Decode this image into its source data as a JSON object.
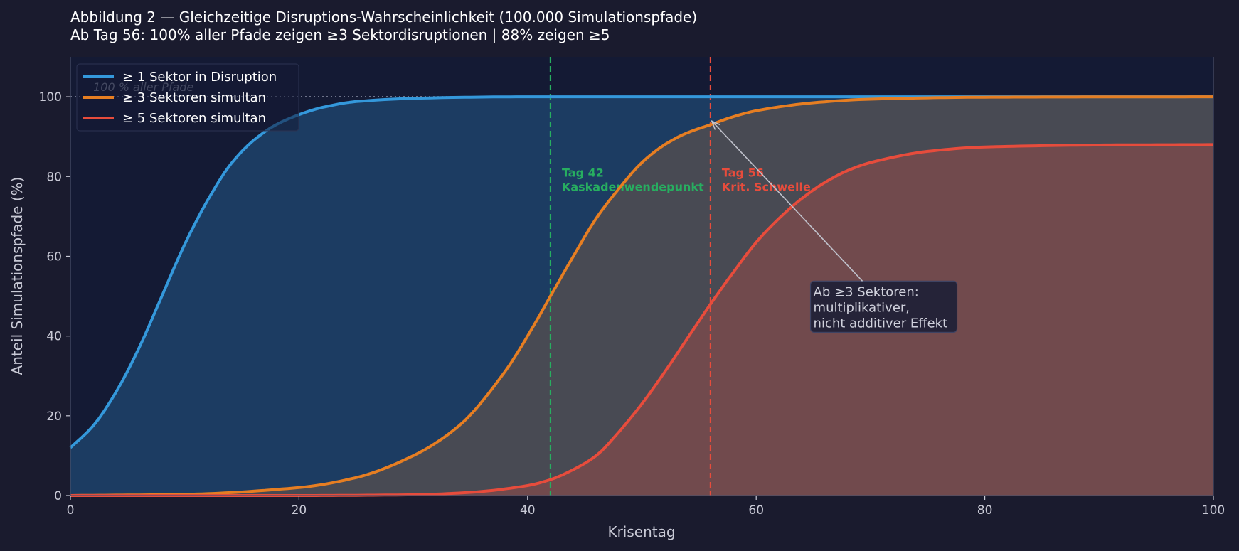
{
  "chart_data": {
    "type": "area",
    "title": "Abbildung 2 — Gleichzeitige Disruptions-Wahrscheinlichkeit (100.000 Simulationspfade)",
    "subtitle": "Ab Tag 56: 100% aller Pfade zeigen ≥3 Sektordisruptionen | 88% zeigen ≥5",
    "xlabel": "Krisentag",
    "ylabel": "Anteil Simulationspfade (%)",
    "xlim": [
      0,
      100
    ],
    "ylim": [
      0,
      110
    ],
    "xticks": [
      0,
      20,
      40,
      60,
      80,
      100
    ],
    "yticks": [
      0,
      20,
      40,
      60,
      80,
      100
    ],
    "grid": false,
    "legend_position": "top-left",
    "series": [
      {
        "name": "≥ 1 Sektor in Disruption",
        "color": "#3498db",
        "x": [
          0,
          2,
          4,
          6,
          8,
          10,
          12,
          14,
          16,
          18,
          20,
          22,
          25,
          30,
          35,
          40,
          50,
          60,
          80,
          100
        ],
        "values": [
          12,
          17.5,
          26,
          37,
          50,
          63,
          74,
          83,
          89,
          93,
          95.5,
          97.3,
          98.8,
          99.6,
          99.9,
          100,
          100,
          100,
          100,
          100
        ]
      },
      {
        "name": "≥ 3 Sektoren simultan",
        "color": "#e67e22",
        "x": [
          0,
          10,
          20,
          25,
          30,
          34,
          38,
          40,
          42,
          44,
          46,
          48,
          50,
          52,
          54,
          56,
          58,
          60,
          65,
          70,
          80,
          100
        ],
        "values": [
          0,
          0.3,
          2,
          4.5,
          10,
          17.5,
          31,
          40,
          50,
          60,
          69.5,
          77,
          83.5,
          88,
          91,
          93,
          95,
          96.5,
          98.5,
          99.4,
          99.9,
          100
        ]
      },
      {
        "name": "≥ 5 Sektoren simultan",
        "color": "#e74c3c",
        "x": [
          0,
          20,
          30,
          35,
          40,
          42,
          44,
          46,
          48,
          50,
          52,
          54,
          56,
          58,
          60,
          62,
          64,
          66,
          68,
          70,
          75,
          80,
          90,
          100
        ],
        "values": [
          0,
          0,
          0.2,
          0.8,
          2.5,
          4,
          6.5,
          10,
          16,
          23,
          31,
          39.5,
          48,
          56,
          63.5,
          69.5,
          74.5,
          78.5,
          81.5,
          83.5,
          86.3,
          87.4,
          87.9,
          88
        ]
      }
    ],
    "reference_line": {
      "y": 100,
      "label": "100 % aller Pfade"
    },
    "vertical_lines": [
      {
        "x": 42,
        "color": "#27ae60",
        "label_line1": "Tag 42",
        "label_line2": "Kaskadenwendepunkt"
      },
      {
        "x": 56,
        "color": "#e74c3c",
        "label_line1": "Tag 56",
        "label_line2": "Krit. Schwelle"
      }
    ],
    "annotation": {
      "lines": [
        "Ab ≥3 Sektoren:",
        "multiplikativer,",
        "nicht additiver Effekt"
      ],
      "text_x": 65,
      "text_y": 47,
      "arrow_to_x": 56,
      "arrow_to_y": 93
    }
  },
  "colors": {
    "page_background": "#1a1b2e",
    "plot_background": "#141a34",
    "reference_line": "#8c92a8"
  }
}
